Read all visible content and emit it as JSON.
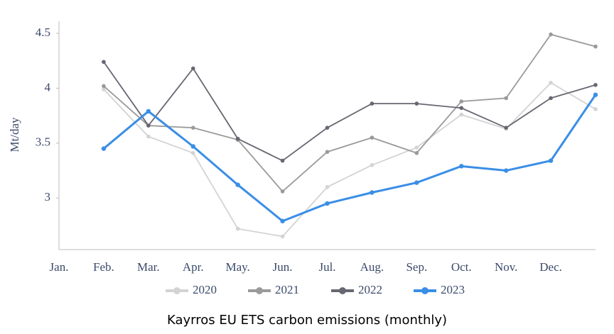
{
  "chart_data": {
    "type": "line",
    "y_label": "Mt/day",
    "caption": "Kayrros EU ETS carbon emissions (monthly)",
    "categories": [
      "Jan.",
      "Feb.",
      "Mar.",
      "Apr.",
      "May.",
      "Jun.",
      "Jul.",
      "Aug.",
      "Sep.",
      "Oct.",
      "Nov.",
      "Dec.",
      null
    ],
    "series": [
      {
        "name": "2020",
        "color": "#d3d3d3",
        "values": [
          null,
          3.99,
          3.56,
          3.41,
          2.72,
          2.65,
          3.1,
          3.3,
          3.46,
          3.76,
          3.63,
          4.05,
          3.81
        ]
      },
      {
        "name": "2021",
        "color": "#9a9a9a",
        "values": [
          null,
          4.02,
          3.66,
          3.64,
          3.53,
          3.06,
          3.42,
          3.55,
          3.41,
          3.88,
          3.91,
          4.49,
          4.38
        ]
      },
      {
        "name": "2022",
        "color": "#676772",
        "values": [
          null,
          4.24,
          3.66,
          4.18,
          3.54,
          3.34,
          3.64,
          3.86,
          3.86,
          3.82,
          3.64,
          3.91,
          4.03
        ]
      },
      {
        "name": "2023",
        "color": "#3a8ee6",
        "values": [
          null,
          3.45,
          3.79,
          3.47,
          3.12,
          2.79,
          2.95,
          3.05,
          3.14,
          3.29,
          3.25,
          3.34,
          3.94
        ]
      }
    ],
    "ylim": [
      2.53,
      4.61
    ],
    "yticks": [
      3,
      3.5,
      4,
      4.5
    ],
    "grid": false,
    "legend": "bottom"
  }
}
